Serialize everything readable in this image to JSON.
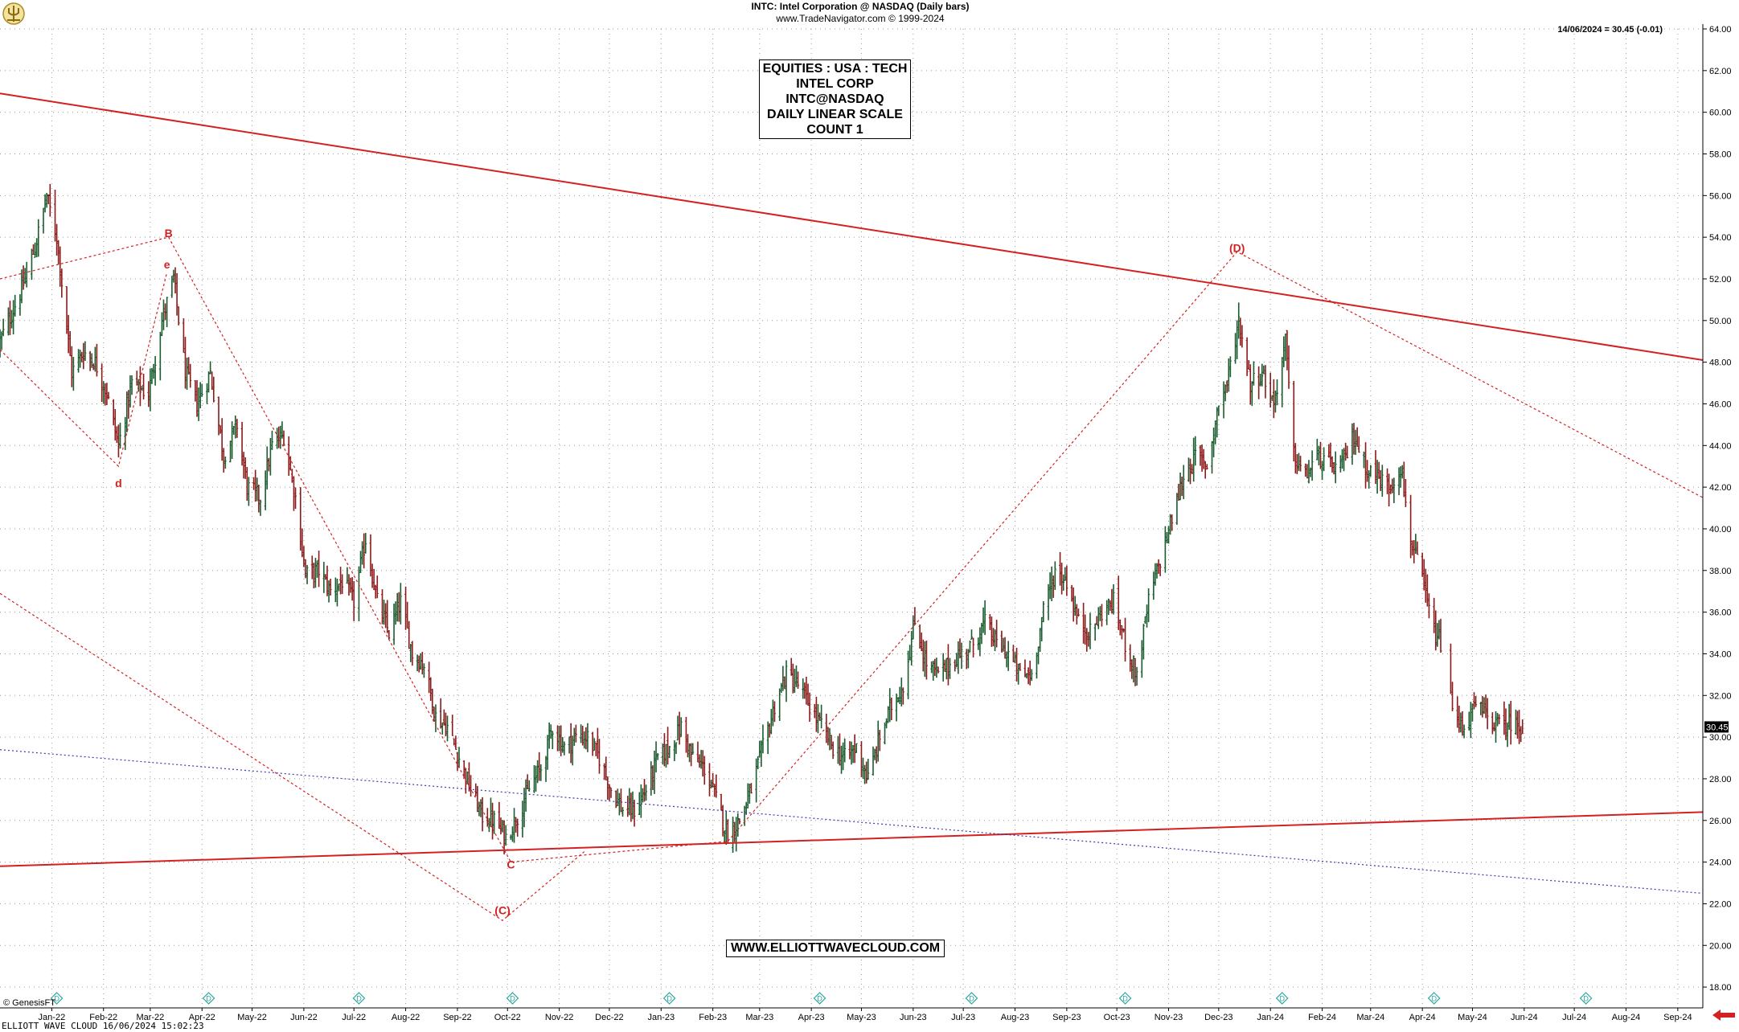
{
  "header": {
    "title": "INTC:  Intel Corporation @ NASDAQ  (Daily bars)",
    "copyright": "www.TradeNavigator.com © 1999-2024",
    "last_quote": "14/06/2024 = 30.45 (-0.01)"
  },
  "info_box": [
    "EQUITIES : USA : TECH",
    "INTEL CORP",
    "INTC@NASDAQ",
    "DAILY LINEAR SCALE",
    "COUNT 1"
  ],
  "watermark": "WWW.ELLIOTTWAVECLOUD.COM",
  "provider": "© GenesisFT",
  "footer": "ELLIOTT WAVE CLOUD  16/06/2024 15:02:23",
  "icons": {
    "logo": "trident-logo-icon",
    "marker": "diamond-d-icon",
    "arrow": "red-arrow-left-icon"
  },
  "colors": {
    "up_bar": "#1a5c2e",
    "down_bar": "#8b1a1a",
    "trendline": "#d42020",
    "wave_line": "#d42020",
    "blue_line": "#3b3bb0",
    "grid": "#9a9a9a"
  },
  "chart_data": {
    "type": "bar",
    "title": "INTC:  Intel Corporation @ NASDAQ  (Daily bars)",
    "y_axis": {
      "side": "right",
      "range": [
        17,
        64
      ],
      "ticks": [
        18,
        20,
        22,
        24,
        26,
        28,
        30,
        32,
        34,
        36,
        38,
        40,
        42,
        44,
        46,
        48,
        50,
        52,
        54,
        56,
        58,
        60,
        62,
        64
      ],
      "tick_labels": [
        "18.00",
        "20.00",
        "22.00",
        "24.00",
        "26.00",
        "28.00",
        "30.00",
        "32.00",
        "34.00",
        "36.00",
        "38.00",
        "40.00",
        "42.00",
        "44.00",
        "46.00",
        "48.00",
        "50.00",
        "52.00",
        "54.00",
        "56.00",
        "58.00",
        "60.00",
        "62.00",
        "64.00"
      ]
    },
    "x_axis": {
      "labels": [
        "Jan-22",
        "Feb-22",
        "Mar-22",
        "Apr-22",
        "May-22",
        "Jun-22",
        "Jul-22",
        "Aug-22",
        "Sep-22",
        "Oct-22",
        "Nov-22",
        "Dec-22",
        "Jan-23",
        "Feb-23",
        "Mar-23",
        "Apr-23",
        "May-23",
        "Jun-23",
        "Jul-23",
        "Aug-23",
        "Sep-23",
        "Oct-23",
        "Nov-23",
        "Dec-23",
        "Jan-24",
        "Feb-24",
        "Mar-24",
        "Apr-24",
        "May-24",
        "Jun-24",
        "Jul-24",
        "Aug-24",
        "Sep-24"
      ],
      "start": "2021-12-15",
      "end": "2024-09-30"
    },
    "grid": true,
    "last_price_label": "30.45",
    "price_path": [
      [
        "2021-12-15",
        49.0
      ],
      [
        "2021-12-28",
        51.5
      ],
      [
        "2022-01-05",
        53.5
      ],
      [
        "2022-01-12",
        56.0
      ],
      [
        "2022-01-18",
        54.0
      ],
      [
        "2022-01-27",
        47.5
      ],
      [
        "2022-02-03",
        48.5
      ],
      [
        "2022-02-10",
        48.0
      ],
      [
        "2022-02-17",
        46.5
      ],
      [
        "2022-02-24",
        44.0
      ],
      [
        "2022-03-04",
        47.0
      ],
      [
        "2022-03-14",
        46.5
      ],
      [
        "2022-03-22",
        50.0
      ],
      [
        "2022-03-29",
        52.0
      ],
      [
        "2022-04-05",
        47.5
      ],
      [
        "2022-04-12",
        46.0
      ],
      [
        "2022-04-20",
        47.5
      ],
      [
        "2022-04-28",
        43.5
      ],
      [
        "2022-05-06",
        45.0
      ],
      [
        "2022-05-12",
        42.0
      ],
      [
        "2022-05-20",
        41.5
      ],
      [
        "2022-05-27",
        44.0
      ],
      [
        "2022-06-03",
        44.5
      ],
      [
        "2022-06-10",
        41.5
      ],
      [
        "2022-06-16",
        37.8
      ],
      [
        "2022-06-24",
        38.0
      ],
      [
        "2022-07-01",
        37.0
      ],
      [
        "2022-07-08",
        37.5
      ],
      [
        "2022-07-15",
        36.5
      ],
      [
        "2022-07-22",
        39.5
      ],
      [
        "2022-07-29",
        36.5
      ],
      [
        "2022-08-05",
        35.0
      ],
      [
        "2022-08-12",
        36.5
      ],
      [
        "2022-08-19",
        34.0
      ],
      [
        "2022-08-26",
        33.5
      ],
      [
        "2022-09-02",
        31.0
      ],
      [
        "2022-09-09",
        30.5
      ],
      [
        "2022-09-16",
        29.0
      ],
      [
        "2022-09-23",
        27.5
      ],
      [
        "2022-09-30",
        26.2
      ],
      [
        "2022-10-07",
        26.0
      ],
      [
        "2022-10-14",
        25.2
      ],
      [
        "2022-10-21",
        26.2
      ],
      [
        "2022-10-28",
        27.5
      ],
      [
        "2022-11-04",
        28.5
      ],
      [
        "2022-11-11",
        30.5
      ],
      [
        "2022-11-18",
        29.5
      ],
      [
        "2022-11-25",
        30.0
      ],
      [
        "2022-12-02",
        30.0
      ],
      [
        "2022-12-09",
        29.0
      ],
      [
        "2022-12-16",
        27.5
      ],
      [
        "2022-12-23",
        26.5
      ],
      [
        "2022-12-30",
        26.5
      ],
      [
        "2023-01-06",
        27.5
      ],
      [
        "2023-01-13",
        29.0
      ],
      [
        "2023-01-20",
        29.5
      ],
      [
        "2023-01-27",
        30.5
      ],
      [
        "2023-02-03",
        29.0
      ],
      [
        "2023-02-10",
        28.5
      ],
      [
        "2023-02-17",
        27.0
      ],
      [
        "2023-02-24",
        25.3
      ],
      [
        "2023-03-03",
        26.0
      ],
      [
        "2023-03-10",
        27.5
      ],
      [
        "2023-03-17",
        29.5
      ],
      [
        "2023-03-24",
        31.5
      ],
      [
        "2023-03-31",
        33.0
      ],
      [
        "2023-04-07",
        32.5
      ],
      [
        "2023-04-14",
        31.5
      ],
      [
        "2023-04-21",
        30.5
      ],
      [
        "2023-04-28",
        29.5
      ],
      [
        "2023-05-05",
        29.0
      ],
      [
        "2023-05-12",
        29.5
      ],
      [
        "2023-05-19",
        28.0
      ],
      [
        "2023-05-26",
        30.0
      ],
      [
        "2023-06-02",
        31.5
      ],
      [
        "2023-06-09",
        32.5
      ],
      [
        "2023-06-16",
        35.5
      ],
      [
        "2023-06-23",
        33.5
      ],
      [
        "2023-06-30",
        33.0
      ],
      [
        "2023-07-07",
        33.5
      ],
      [
        "2023-07-14",
        34.0
      ],
      [
        "2023-07-21",
        34.5
      ],
      [
        "2023-07-28",
        35.5
      ],
      [
        "2023-08-04",
        34.5
      ],
      [
        "2023-08-11",
        34.0
      ],
      [
        "2023-08-18",
        33.0
      ],
      [
        "2023-08-25",
        33.0
      ],
      [
        "2023-09-01",
        36.0
      ],
      [
        "2023-09-08",
        38.0
      ],
      [
        "2023-09-15",
        37.5
      ],
      [
        "2023-09-22",
        35.5
      ],
      [
        "2023-09-29",
        35.0
      ],
      [
        "2023-10-06",
        36.0
      ],
      [
        "2023-10-13",
        36.5
      ],
      [
        "2023-10-20",
        34.5
      ],
      [
        "2023-10-27",
        33.0
      ],
      [
        "2023-11-03",
        36.5
      ],
      [
        "2023-11-10",
        38.5
      ],
      [
        "2023-11-17",
        40.5
      ],
      [
        "2023-11-24",
        42.5
      ],
      [
        "2023-12-01",
        43.5
      ],
      [
        "2023-12-08",
        43.0
      ],
      [
        "2023-12-15",
        46.0
      ],
      [
        "2023-12-20",
        47.0
      ],
      [
        "2023-12-27",
        50.0
      ],
      [
        "2024-01-03",
        47.0
      ],
      [
        "2024-01-10",
        47.5
      ],
      [
        "2024-01-17",
        46.0
      ],
      [
        "2024-01-24",
        49.0
      ],
      [
        "2024-01-29",
        43.5
      ],
      [
        "2024-02-05",
        42.5
      ],
      [
        "2024-02-12",
        43.5
      ],
      [
        "2024-02-20",
        43.0
      ],
      [
        "2024-02-27",
        43.0
      ],
      [
        "2024-03-05",
        44.5
      ],
      [
        "2024-03-12",
        43.0
      ],
      [
        "2024-03-19",
        42.5
      ],
      [
        "2024-03-26",
        42.0
      ],
      [
        "2024-04-02",
        43.0
      ],
      [
        "2024-04-08",
        39.5
      ],
      [
        "2024-04-15",
        37.5
      ],
      [
        "2024-04-22",
        35.0
      ],
      [
        "2024-04-26",
        34.5
      ],
      [
        "2024-04-30",
        34.8
      ],
      [
        "2024-05-03",
        31.0
      ],
      [
        "2024-05-10",
        30.5
      ],
      [
        "2024-05-17",
        31.5
      ],
      [
        "2024-05-24",
        31.0
      ],
      [
        "2024-05-31",
        30.5
      ],
      [
        "2024-06-07",
        30.7
      ],
      [
        "2024-06-14",
        30.45
      ]
    ],
    "annotations": [
      {
        "label": "B",
        "date": "2022-03-26",
        "price": 54.0
      },
      {
        "label": "e",
        "date": "2022-03-25",
        "price": 52.5
      },
      {
        "label": "d",
        "date": "2022-02-24",
        "price": 42.0
      },
      {
        "label": "C",
        "date": "2022-10-17",
        "price": 23.7
      },
      {
        "label": "(C)",
        "date": "2022-10-12",
        "price": 21.5
      },
      {
        "label": "(D)",
        "date": "2023-12-26",
        "price": 53.3
      }
    ],
    "trendlines": [
      {
        "name": "upper",
        "style": "solid",
        "points": [
          [
            "2021-12-15",
            60.9
          ],
          [
            "2024-09-30",
            48.1
          ]
        ]
      },
      {
        "name": "lower",
        "style": "solid",
        "points": [
          [
            "2021-12-15",
            23.8
          ],
          [
            "2024-09-30",
            26.4
          ]
        ]
      },
      {
        "name": "blue",
        "style": "dotted",
        "points": [
          [
            "2021-12-15",
            29.4
          ],
          [
            "2024-09-30",
            22.5
          ]
        ]
      },
      {
        "name": "wave-1",
        "style": "dotted",
        "points": [
          [
            "2021-12-15",
            48.6
          ],
          [
            "2022-02-24",
            43.0
          ],
          [
            "2022-03-25",
            52.3
          ]
        ]
      },
      {
        "name": "wave-2",
        "style": "dotted",
        "points": [
          [
            "2021-12-15",
            52.0
          ],
          [
            "2022-03-26",
            54.0
          ],
          [
            "2022-10-17",
            24.0
          ],
          [
            "2023-02-24",
            25.0
          ],
          [
            "2023-12-26",
            53.3
          ],
          [
            "2024-09-30",
            41.5
          ]
        ]
      },
      {
        "name": "wave-3",
        "style": "dotted",
        "points": [
          [
            "2021-12-15",
            36.9
          ],
          [
            "2022-10-12",
            21.2
          ],
          [
            "2022-11-30",
            24.5
          ]
        ]
      }
    ],
    "markers": [
      "2022-01-18",
      "2022-04-19",
      "2022-07-18",
      "2022-10-18",
      "2023-01-20",
      "2023-04-20",
      "2023-07-20",
      "2023-10-20",
      "2024-01-22",
      "2024-04-22",
      "2024-07-22"
    ]
  }
}
